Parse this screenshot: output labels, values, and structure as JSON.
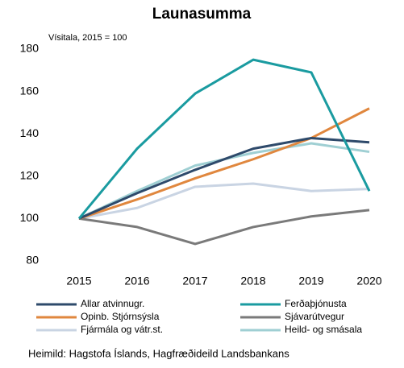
{
  "chart_data": {
    "type": "line",
    "title": "Launasumma",
    "subtitle": "Vísitala, 2015 = 100",
    "source": "Heimild: Hagstofa Íslands, Hagfræðideild Landsbankans",
    "categories": [
      "2015",
      "2016",
      "2017",
      "2018",
      "2019",
      "2020"
    ],
    "ylim": [
      80,
      180
    ],
    "yticks": [
      80,
      100,
      120,
      140,
      160,
      180
    ],
    "grid": false,
    "series": [
      {
        "name": "Allar atvinnugr.",
        "color": "#2e4a6b",
        "values": [
          100,
          112,
          123,
          133,
          138,
          136
        ]
      },
      {
        "name": "Ferðaþjónusta",
        "color": "#1a9ba0",
        "values": [
          100,
          133,
          159,
          175,
          169,
          113
        ]
      },
      {
        "name": "Opinb. Stjórnsýsla",
        "color": "#e0873e",
        "values": [
          100,
          109,
          119,
          128,
          138,
          152
        ]
      },
      {
        "name": "Sjávarútvegur",
        "color": "#7a7a7a",
        "values": [
          100,
          96,
          88,
          96,
          101,
          104
        ]
      },
      {
        "name": "Fjármála og vátr.st.",
        "color": "#c9d4e3",
        "values": [
          100,
          105,
          115,
          116.5,
          113,
          114
        ]
      },
      {
        "name": "Heild- og smásala",
        "color": "#9fcfd3",
        "values": [
          100,
          113,
          125,
          131,
          135.5,
          131.5
        ]
      }
    ]
  }
}
